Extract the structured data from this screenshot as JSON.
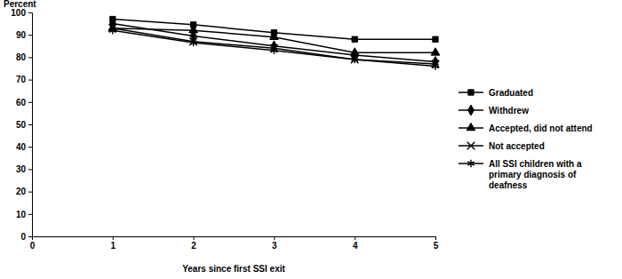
{
  "chart_data": {
    "type": "line",
    "y_label": "Percent",
    "x_label": "Years since first SSI exit",
    "x": [
      1,
      2,
      3,
      4,
      5
    ],
    "xlim": [
      0,
      5
    ],
    "xticks": [
      0,
      1,
      2,
      3,
      4,
      5
    ],
    "ylim": [
      0,
      100
    ],
    "yticks": [
      0,
      10,
      20,
      30,
      40,
      50,
      60,
      70,
      80,
      90,
      100
    ],
    "legend": "right",
    "series": [
      {
        "name": "Graduated",
        "color": "#000000",
        "marker": "square",
        "values": [
          97,
          94.5,
          91,
          88,
          88
        ]
      },
      {
        "name": "Withdrew",
        "color": "#000000",
        "marker": "diamond",
        "values": [
          95,
          89.5,
          85,
          81,
          78
        ]
      },
      {
        "name": "Accepted, did not attend",
        "color": "#000000",
        "marker": "triangle",
        "values": [
          93,
          92,
          89,
          82,
          82
        ]
      },
      {
        "name": "Not accepted",
        "color": "#000000",
        "marker": "x",
        "values": [
          93,
          87,
          84,
          79,
          77
        ]
      },
      {
        "name": "All SSI children with a primary diagnosis of deafness",
        "color": "#000000",
        "marker": "asterisk",
        "values": [
          92,
          86.5,
          83,
          79,
          76
        ]
      }
    ]
  }
}
